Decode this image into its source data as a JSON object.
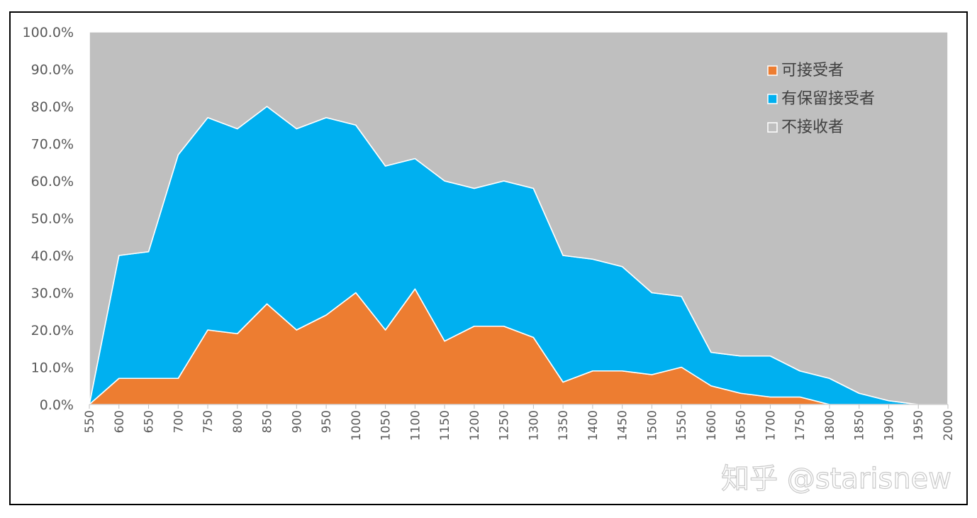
{
  "chart_data": {
    "type": "area",
    "stacked": "percent",
    "x": [
      550,
      600,
      650,
      700,
      750,
      800,
      850,
      900,
      950,
      1000,
      1050,
      1100,
      1150,
      1200,
      1250,
      1300,
      1350,
      1400,
      1450,
      1500,
      1550,
      1600,
      1650,
      1700,
      1750,
      1800,
      1850,
      1900,
      1950,
      2000
    ],
    "series": [
      {
        "name": "可接受者",
        "color": "#ED7D31",
        "values": [
          0.0,
          7.0,
          7.0,
          7.0,
          20.0,
          19.0,
          27.0,
          20.0,
          24.0,
          30.0,
          20.0,
          31.0,
          17.0,
          21.0,
          21.0,
          18.0,
          6.0,
          9.0,
          9.0,
          8.0,
          10.0,
          5.0,
          3.0,
          2.0,
          2.0,
          0.0,
          0.0,
          0.0,
          0.0,
          0.0
        ]
      },
      {
        "name": "有保留接受者",
        "color": "#00B0F0",
        "values": [
          0.0,
          33.0,
          34.0,
          60.0,
          57.0,
          55.0,
          53.0,
          54.0,
          53.0,
          45.0,
          44.0,
          35.0,
          43.0,
          37.0,
          39.0,
          40.0,
          34.0,
          30.0,
          28.0,
          22.0,
          19.0,
          9.0,
          10.0,
          11.0,
          7.0,
          7.0,
          3.0,
          1.0,
          0.0,
          0.0
        ]
      },
      {
        "name": "不接收者",
        "color": "#BFBFBF",
        "values": [
          100.0,
          60.0,
          59.0,
          33.0,
          23.0,
          26.0,
          20.0,
          26.0,
          23.0,
          25.0,
          36.0,
          34.0,
          40.0,
          42.0,
          40.0,
          42.0,
          60.0,
          61.0,
          63.0,
          70.0,
          71.0,
          86.0,
          87.0,
          87.0,
          91.0,
          93.0,
          97.0,
          99.0,
          100.0,
          100.0
        ]
      }
    ],
    "ylim": [
      0,
      100
    ],
    "y_ticks": [
      "0.0%",
      "10.0%",
      "20.0%",
      "30.0%",
      "40.0%",
      "50.0%",
      "60.0%",
      "70.0%",
      "80.0%",
      "90.0%",
      "100.0%"
    ],
    "x_tick_labels": [
      "550",
      "600",
      "650",
      "700",
      "750",
      "800",
      "850",
      "900",
      "950",
      "1000",
      "1050",
      "1100",
      "1150",
      "1200",
      "1250",
      "1300",
      "1350",
      "1400",
      "1450",
      "1500",
      "1550",
      "1600",
      "1650",
      "1700",
      "1750",
      "1800",
      "1850",
      "1900",
      "1950",
      "2000"
    ],
    "legend_position": "top-right",
    "grid": false,
    "title": "",
    "xlabel": "",
    "ylabel": ""
  },
  "watermark": "知乎 @starisnew",
  "legend_border_color": "#FFFFFF"
}
